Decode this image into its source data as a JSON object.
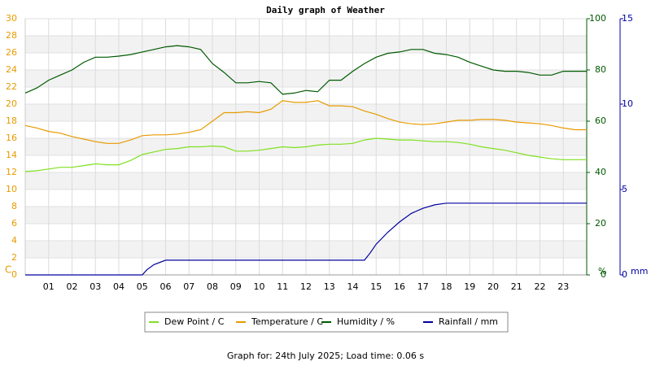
{
  "chart_data": {
    "type": "line",
    "title": "Daily graph of Weather",
    "footer": "Graph for: 24th July 2025; Load time: 0.06 s",
    "y_unit": "C",
    "y2_unit": "%",
    "y3_unit": "mm",
    "xlim": [
      0,
      24
    ],
    "xticks": [
      {
        "value": 1,
        "label": "01"
      },
      {
        "value": 2,
        "label": "02"
      },
      {
        "value": 3,
        "label": "03"
      },
      {
        "value": 4,
        "label": "04"
      },
      {
        "value": 5,
        "label": "05"
      },
      {
        "value": 6,
        "label": "06"
      },
      {
        "value": 7,
        "label": "07"
      },
      {
        "value": 8,
        "label": "08"
      },
      {
        "value": 9,
        "label": "09"
      },
      {
        "value": 10,
        "label": "10"
      },
      {
        "value": 11,
        "label": "11"
      },
      {
        "value": 12,
        "label": "12"
      },
      {
        "value": 13,
        "label": "13"
      },
      {
        "value": 14,
        "label": "14"
      },
      {
        "value": 15,
        "label": "15"
      },
      {
        "value": 16,
        "label": "16"
      },
      {
        "value": 17,
        "label": "17"
      },
      {
        "value": 18,
        "label": "18"
      },
      {
        "value": 19,
        "label": "19"
      },
      {
        "value": 20,
        "label": "20"
      },
      {
        "value": 21,
        "label": "21"
      },
      {
        "value": 22,
        "label": "22"
      },
      {
        "value": 23,
        "label": "23"
      }
    ],
    "ylim": [
      0,
      30
    ],
    "yticks": [
      0,
      2,
      4,
      6,
      8,
      10,
      12,
      14,
      16,
      18,
      20,
      22,
      24,
      26,
      28,
      30
    ],
    "y2lim": [
      0,
      100
    ],
    "y2ticks": [
      0,
      20,
      40,
      60,
      80,
      100
    ],
    "y3lim": [
      0,
      15
    ],
    "y3ticks": [
      0,
      5,
      10,
      15
    ],
    "grid": true,
    "series": [
      {
        "name": "Dew Point / C",
        "color": "#80e020",
        "x": [
          0,
          0.5,
          1,
          1.5,
          2,
          2.5,
          3,
          3.5,
          4,
          4.5,
          5,
          5.5,
          6,
          6.5,
          7,
          7.5,
          8,
          8.5,
          9,
          9.5,
          10,
          10.5,
          11,
          11.5,
          12,
          12.5,
          13,
          13.5,
          14,
          14.5,
          15,
          15.5,
          16,
          16.5,
          17,
          17.5,
          18,
          18.5,
          19,
          19.5,
          20,
          20.5,
          21,
          21.5,
          22,
          22.5,
          23,
          23.5,
          24
        ],
        "values": [
          12.1,
          12.2,
          12.4,
          12.6,
          12.6,
          12.8,
          13.0,
          12.9,
          12.9,
          13.4,
          14.1,
          14.4,
          14.7,
          14.8,
          15.0,
          15.0,
          15.1,
          15.0,
          14.5,
          14.5,
          14.6,
          14.8,
          15.0,
          14.9,
          15.0,
          15.2,
          15.3,
          15.3,
          15.4,
          15.8,
          16.0,
          15.9,
          15.8,
          15.8,
          15.7,
          15.6,
          15.6,
          15.5,
          15.3,
          15.0,
          14.8,
          14.6,
          14.3,
          14.0,
          13.8,
          13.6,
          13.5,
          13.5,
          13.5
        ]
      },
      {
        "name": "Temperature / C",
        "color": "#e89a00",
        "x": [
          0,
          0.5,
          1,
          1.5,
          2,
          2.5,
          3,
          3.5,
          4,
          4.5,
          5,
          5.5,
          6,
          6.5,
          7,
          7.5,
          8,
          8.5,
          9,
          9.5,
          10,
          10.5,
          11,
          11.5,
          12,
          12.5,
          13,
          13.5,
          14,
          14.5,
          15,
          15.5,
          16,
          16.5,
          17,
          17.5,
          18,
          18.5,
          19,
          19.5,
          20,
          20.5,
          21,
          21.5,
          22,
          22.5,
          23,
          23.5,
          24
        ],
        "values": [
          17.5,
          17.2,
          16.8,
          16.6,
          16.2,
          15.9,
          15.6,
          15.4,
          15.4,
          15.8,
          16.3,
          16.4,
          16.4,
          16.5,
          16.7,
          17.0,
          18.0,
          19.0,
          19.0,
          19.1,
          19.0,
          19.4,
          20.4,
          20.2,
          20.2,
          20.4,
          19.8,
          19.8,
          19.7,
          19.2,
          18.8,
          18.3,
          17.9,
          17.7,
          17.6,
          17.7,
          17.9,
          18.1,
          18.1,
          18.2,
          18.2,
          18.1,
          17.9,
          17.8,
          17.7,
          17.5,
          17.2,
          17.0,
          17.0
        ]
      },
      {
        "name": "Humidity / %",
        "color": "#005a00",
        "axis": "y2",
        "x": [
          0,
          0.5,
          1,
          1.5,
          2,
          2.5,
          3,
          3.5,
          4,
          4.5,
          5,
          5.5,
          6,
          6.5,
          7,
          7.5,
          8,
          8.5,
          9,
          9.5,
          10,
          10.5,
          11,
          11.5,
          12,
          12.5,
          13,
          13.5,
          14,
          14.5,
          15,
          15.5,
          16,
          16.5,
          17,
          17.5,
          18,
          18.5,
          19,
          19.5,
          20,
          20.5,
          21,
          21.5,
          22,
          22.5,
          23,
          23.5,
          24
        ],
        "values": [
          71,
          73,
          76,
          78,
          80,
          83,
          85,
          85,
          85.4,
          86,
          87,
          88,
          89,
          89.5,
          89,
          88,
          82.5,
          79,
          75,
          75,
          75.5,
          75,
          70.5,
          71,
          72,
          71.5,
          76,
          76,
          79.5,
          82.5,
          85,
          86.5,
          87,
          88,
          88,
          86.5,
          86,
          85,
          83,
          81.5,
          80,
          79.5,
          79.5,
          79,
          78,
          78,
          79.5,
          79.5,
          79.5
        ]
      },
      {
        "name": "Rainfall / mm",
        "color": "#0000a0",
        "axis": "y3",
        "x": [
          0,
          5,
          5.2,
          5.5,
          6,
          14.5,
          14.75,
          15,
          15.5,
          16,
          16.5,
          17,
          17.5,
          18,
          24
        ],
        "values": [
          0,
          0,
          0.3,
          0.6,
          0.86,
          0.86,
          1.3,
          1.8,
          2.5,
          3.1,
          3.6,
          3.9,
          4.1,
          4.2,
          4.2
        ]
      }
    ]
  }
}
